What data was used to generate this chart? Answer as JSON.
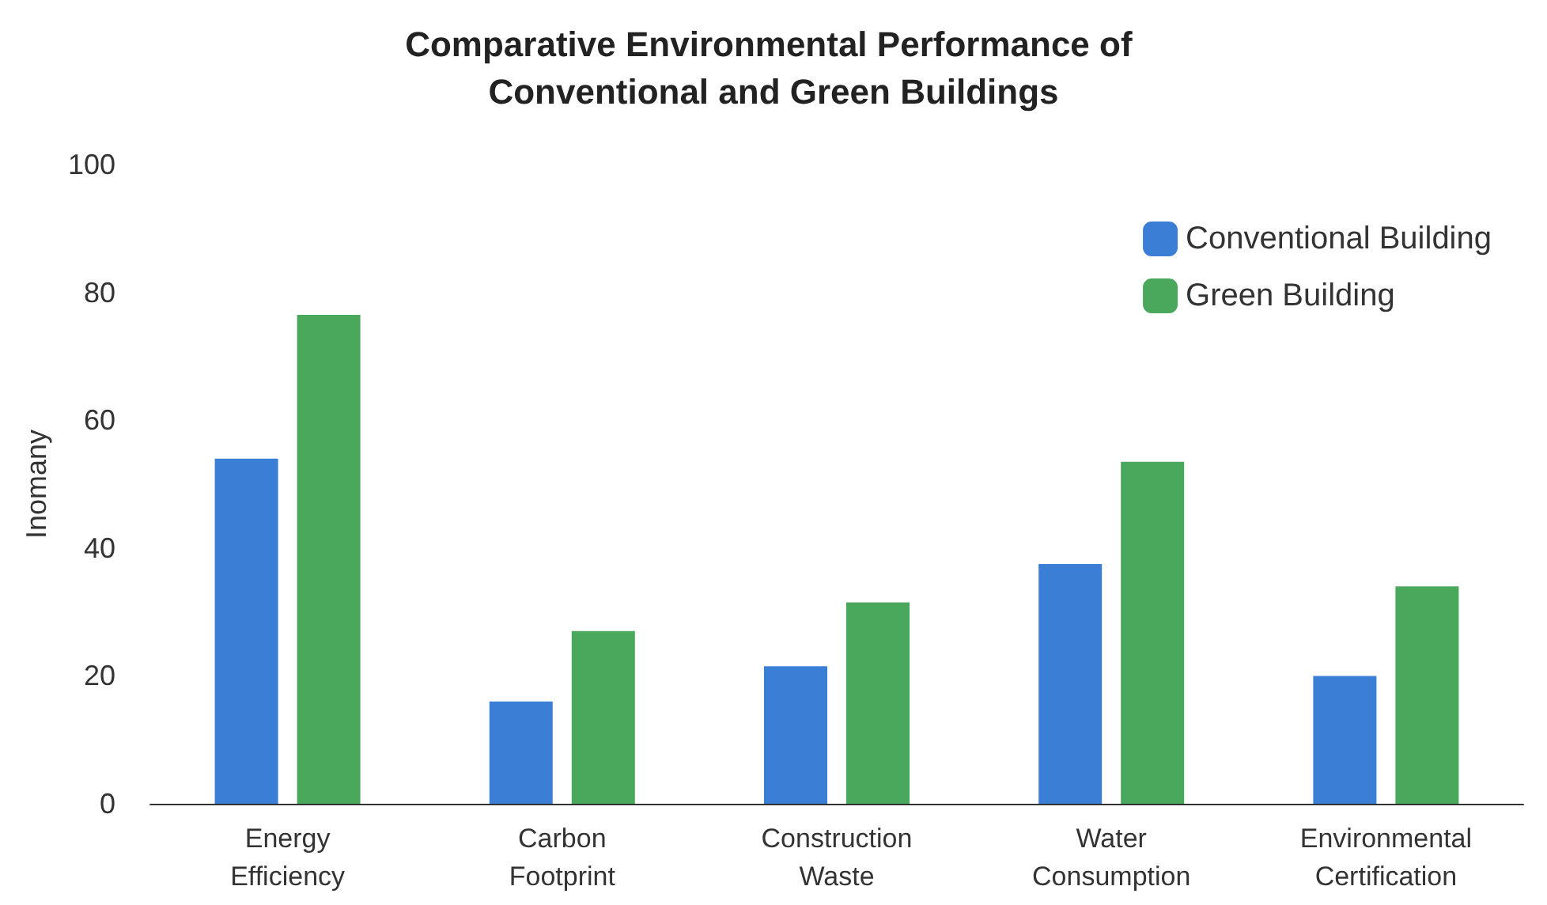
{
  "chart_data": {
    "type": "bar",
    "title": "Comparative Environmental Performance of Conventional and Green Buildings",
    "ylabel": "Inomany",
    "categories": [
      "Energy Efficiency",
      "Carbon Footprint",
      "Construction Waste",
      "Water Consumption",
      "Environmental Certification"
    ],
    "series": [
      {
        "name": "Conventional Building",
        "color": "#3a7fd5",
        "values": [
          54,
          16,
          21.5,
          37.5,
          20
        ]
      },
      {
        "name": "Green Building",
        "color": "#4aa85c",
        "values": [
          76.5,
          27,
          31.5,
          53.5,
          34
        ]
      }
    ],
    "ylim": [
      0,
      100
    ],
    "yticks": [
      0,
      20,
      40,
      60,
      80,
      100
    ],
    "grid": false,
    "legend": "top right"
  }
}
